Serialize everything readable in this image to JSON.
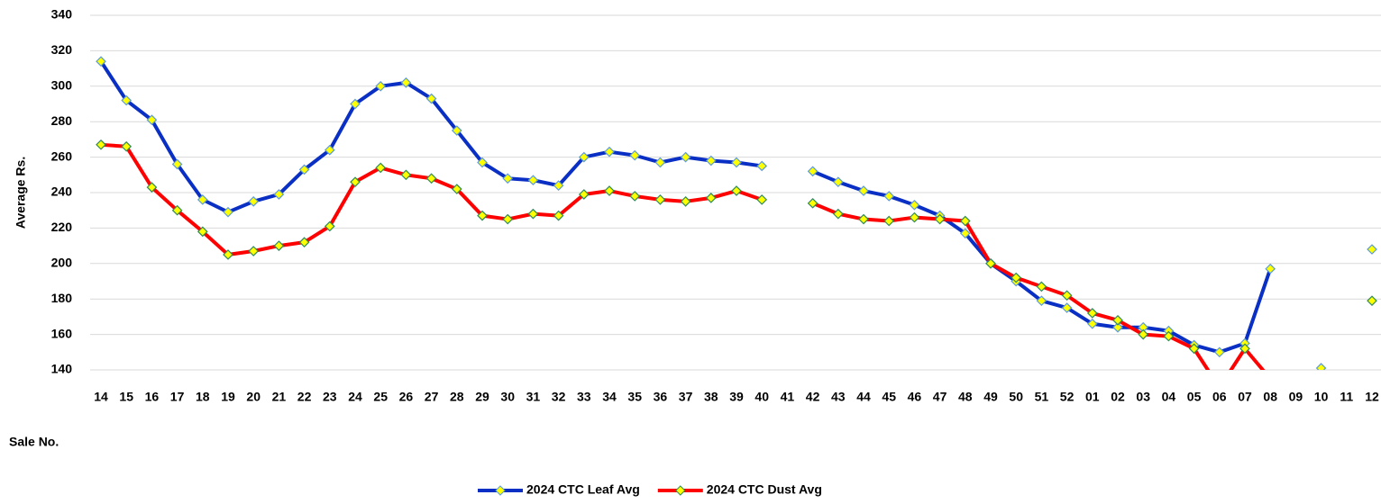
{
  "chart_data": {
    "type": "line",
    "y_label": "Average Rs.",
    "x_label": "Sale No.",
    "categories": [
      "14",
      "15",
      "16",
      "17",
      "18",
      "19",
      "20",
      "21",
      "22",
      "23",
      "24",
      "25",
      "26",
      "27",
      "28",
      "29",
      "30",
      "31",
      "32",
      "33",
      "34",
      "35",
      "36",
      "37",
      "38",
      "39",
      "40",
      "41",
      "42",
      "43",
      "44",
      "45",
      "46",
      "47",
      "48",
      "49",
      "50",
      "51",
      "52",
      "01",
      "02",
      "03",
      "04",
      "05",
      "06",
      "07",
      "08",
      "09",
      "10",
      "11",
      "12"
    ],
    "series": [
      {
        "name": "2024 CTC Leaf Avg",
        "color": "#0a2fc4",
        "values": [
          314,
          292,
          281,
          256,
          236,
          229,
          235,
          239,
          253,
          264,
          290,
          300,
          302,
          293,
          275,
          257,
          248,
          247,
          244,
          260,
          263,
          261,
          257,
          260,
          258,
          257,
          255,
          null,
          252,
          246,
          241,
          238,
          233,
          227,
          217,
          200,
          190,
          179,
          175,
          166,
          164,
          164,
          162,
          154,
          150,
          155,
          197,
          null,
          141,
          null,
          208
        ]
      },
      {
        "name": "2024 CTC Dust Avg",
        "color": "#ff0000",
        "values": [
          267,
          266,
          243,
          230,
          218,
          205,
          207,
          210,
          212,
          221,
          246,
          254,
          250,
          248,
          242,
          227,
          225,
          228,
          227,
          239,
          241,
          238,
          236,
          235,
          237,
          241,
          236,
          null,
          234,
          228,
          225,
          224,
          226,
          225,
          224,
          200,
          192,
          187,
          182,
          172,
          168,
          160,
          159,
          152,
          130,
          152,
          135,
          null,
          null,
          null,
          179
        ]
      }
    ],
    "ylim": [
      140,
      340
    ],
    "yticks": [
      140,
      160,
      180,
      200,
      220,
      240,
      260,
      280,
      300,
      320,
      340
    ],
    "grid": true,
    "legend": "bottom"
  }
}
